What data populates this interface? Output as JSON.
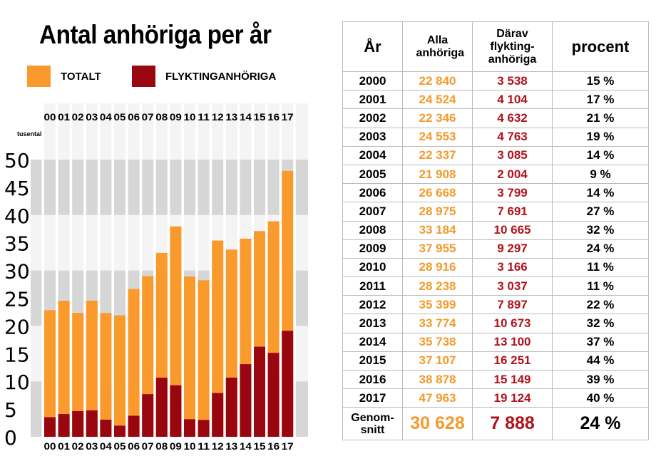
{
  "title": "Antal anhöriga per år",
  "legend": [
    {
      "label": "TOTALT",
      "color": "#fb9a2c"
    },
    {
      "label": "FLYKTINGANHÖRIGA",
      "color": "#9a0610"
    }
  ],
  "chart_data": {
    "type": "bar",
    "stacked": "overlay",
    "categories": [
      "00",
      "01",
      "02",
      "03",
      "04",
      "05",
      "06",
      "07",
      "08",
      "09",
      "10",
      "11",
      "12",
      "13",
      "14",
      "15",
      "16",
      "17"
    ],
    "series": [
      {
        "name": "TOTALT",
        "values": [
          22.84,
          24.524,
          22.346,
          24.553,
          22.337,
          21.908,
          26.668,
          28.975,
          33.184,
          37.955,
          28.916,
          28.238,
          35.399,
          33.774,
          35.738,
          37.107,
          38.878,
          47.963
        ]
      },
      {
        "name": "FLYKTINGANHÖRIGA",
        "values": [
          3.538,
          4.104,
          4.632,
          4.763,
          3.085,
          2.004,
          3.799,
          7.691,
          10.665,
          9.297,
          3.166,
          3.037,
          7.897,
          10.673,
          13.1,
          16.251,
          15.149,
          19.124
        ]
      }
    ],
    "ylabel": "tusental",
    "ylim": [
      0,
      50
    ],
    "yticks": [
      "0",
      "5",
      "10",
      "15",
      "20",
      "25",
      "30",
      "35",
      "40",
      "45",
      "50"
    ]
  },
  "table": {
    "headers": [
      "År",
      "Alla anhöriga",
      "Därav flykting-anhöriga",
      "procent"
    ],
    "rows": [
      [
        "2000",
        "22 840",
        "3 538",
        "15 %"
      ],
      [
        "2001",
        "24 524",
        "4 104",
        "17 %"
      ],
      [
        "2002",
        "22 346",
        "4 632",
        "21 %"
      ],
      [
        "2003",
        "24 553",
        "4 763",
        "19 %"
      ],
      [
        "2004",
        "22 337",
        "3 085",
        "14 %"
      ],
      [
        "2005",
        "21 908",
        "2 004",
        "9 %"
      ],
      [
        "2006",
        "26 668",
        "3 799",
        "14 %"
      ],
      [
        "2007",
        "28 975",
        "7 691",
        "27 %"
      ],
      [
        "2008",
        "33 184",
        "10 665",
        "32 %"
      ],
      [
        "2009",
        "37 955",
        "9 297",
        "24 %"
      ],
      [
        "2010",
        "28 916",
        "3 166",
        "11 %"
      ],
      [
        "2011",
        "28 238",
        "3 037",
        "11 %"
      ],
      [
        "2012",
        "35 399",
        "7 897",
        "22 %"
      ],
      [
        "2013",
        "33 774",
        "10 673",
        "32 %"
      ],
      [
        "2014",
        "35 738",
        "13 100",
        "37 %"
      ],
      [
        "2015",
        "37 107",
        "16 251",
        "44 %"
      ],
      [
        "2016",
        "38 878",
        "15 149",
        "39 %"
      ],
      [
        "2017",
        "47 963",
        "19 124",
        "40 %"
      ]
    ],
    "average": [
      "Genom-snitt",
      "30 628",
      "7 888",
      "24 %"
    ]
  }
}
